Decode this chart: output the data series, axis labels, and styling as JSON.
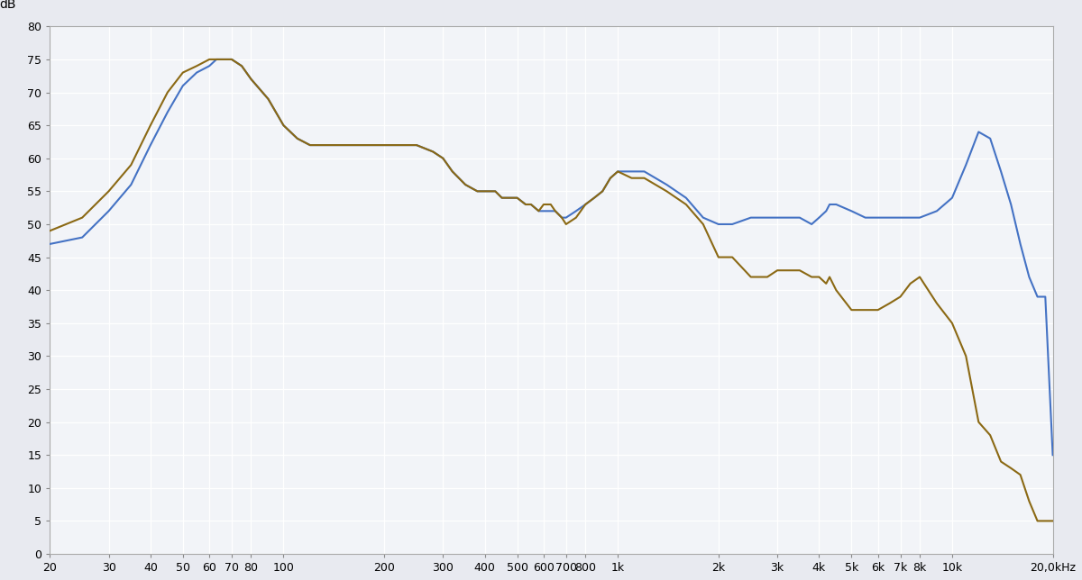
{
  "title": "",
  "ylabel": "dB",
  "ylim": [
    0,
    80
  ],
  "yticks": [
    0,
    5,
    10,
    15,
    20,
    25,
    30,
    35,
    40,
    45,
    50,
    55,
    60,
    65,
    70,
    75,
    80
  ],
  "xlim_log": [
    20,
    20000
  ],
  "xtick_positions": [
    20,
    30,
    40,
    50,
    60,
    70,
    80,
    100,
    200,
    300,
    400,
    500,
    600,
    700,
    800,
    1000,
    2000,
    3000,
    4000,
    5000,
    6000,
    7000,
    8000,
    10000,
    20000
  ],
  "xtick_labels": [
    "20",
    "30",
    "40",
    "50",
    "60",
    "70",
    "80",
    "100",
    "200",
    "300",
    "400",
    "500",
    "600",
    "700",
    "800",
    "1k",
    "2k",
    "3k",
    "4k",
    "5k",
    "6k",
    "7k",
    "8k",
    "10k",
    "20,0kHz"
  ],
  "blue_color": "#4472C4",
  "brown_color": "#8B6914",
  "plot_bg_color": "#F2F4F8",
  "fig_bg_color": "#E8EAF0",
  "grid_color": "#FFFFFF",
  "blue_freqs": [
    20,
    25,
    30,
    35,
    40,
    45,
    50,
    55,
    60,
    63,
    70,
    75,
    80,
    90,
    100,
    110,
    120,
    130,
    140,
    150,
    160,
    180,
    200,
    220,
    250,
    280,
    300,
    320,
    350,
    380,
    400,
    430,
    450,
    480,
    500,
    530,
    550,
    580,
    600,
    630,
    650,
    680,
    700,
    750,
    800,
    850,
    900,
    950,
    1000,
    1100,
    1200,
    1400,
    1600,
    1800,
    2000,
    2200,
    2500,
    2800,
    3000,
    3200,
    3500,
    3800,
    4000,
    4200,
    4300,
    4500,
    5000,
    5500,
    6000,
    6500,
    7000,
    7500,
    8000,
    9000,
    10000,
    11000,
    12000,
    13000,
    14000,
    15000,
    16000,
    17000,
    18000,
    19000,
    20000
  ],
  "blue_vals": [
    47,
    48,
    52,
    56,
    62,
    67,
    71,
    73,
    74,
    75,
    75,
    74,
    72,
    69,
    65,
    63,
    62,
    62,
    62,
    62,
    62,
    62,
    62,
    62,
    62,
    61,
    60,
    58,
    56,
    55,
    55,
    55,
    54,
    54,
    54,
    53,
    53,
    52,
    52,
    52,
    52,
    51,
    51,
    52,
    53,
    54,
    55,
    57,
    58,
    58,
    58,
    56,
    54,
    51,
    50,
    50,
    51,
    51,
    51,
    51,
    51,
    50,
    51,
    52,
    53,
    53,
    52,
    51,
    51,
    51,
    51,
    51,
    51,
    52,
    54,
    59,
    64,
    63,
    58,
    53,
    47,
    42,
    39,
    39,
    15
  ],
  "brown_freqs": [
    20,
    25,
    30,
    35,
    40,
    45,
    50,
    55,
    60,
    63,
    70,
    75,
    80,
    90,
    100,
    110,
    120,
    130,
    140,
    150,
    160,
    180,
    200,
    220,
    250,
    280,
    300,
    320,
    350,
    380,
    400,
    430,
    450,
    480,
    500,
    530,
    550,
    580,
    600,
    630,
    650,
    680,
    700,
    750,
    800,
    850,
    900,
    950,
    1000,
    1100,
    1200,
    1400,
    1600,
    1800,
    2000,
    2200,
    2500,
    2800,
    3000,
    3200,
    3500,
    3800,
    4000,
    4200,
    4300,
    4500,
    5000,
    5500,
    6000,
    6500,
    7000,
    7500,
    8000,
    9000,
    10000,
    11000,
    12000,
    13000,
    14000,
    15000,
    16000,
    17000,
    18000,
    19000,
    20000
  ],
  "brown_vals": [
    49,
    51,
    55,
    59,
    65,
    70,
    73,
    74,
    75,
    75,
    75,
    74,
    72,
    69,
    65,
    63,
    62,
    62,
    62,
    62,
    62,
    62,
    62,
    62,
    62,
    61,
    60,
    58,
    56,
    55,
    55,
    55,
    54,
    54,
    54,
    53,
    53,
    52,
    53,
    53,
    52,
    51,
    50,
    51,
    53,
    54,
    55,
    57,
    58,
    57,
    57,
    55,
    53,
    50,
    45,
    45,
    42,
    42,
    43,
    43,
    43,
    42,
    42,
    41,
    42,
    40,
    37,
    37,
    37,
    38,
    39,
    41,
    42,
    38,
    35,
    30,
    20,
    18,
    14,
    13,
    12,
    8,
    5,
    5,
    5
  ]
}
